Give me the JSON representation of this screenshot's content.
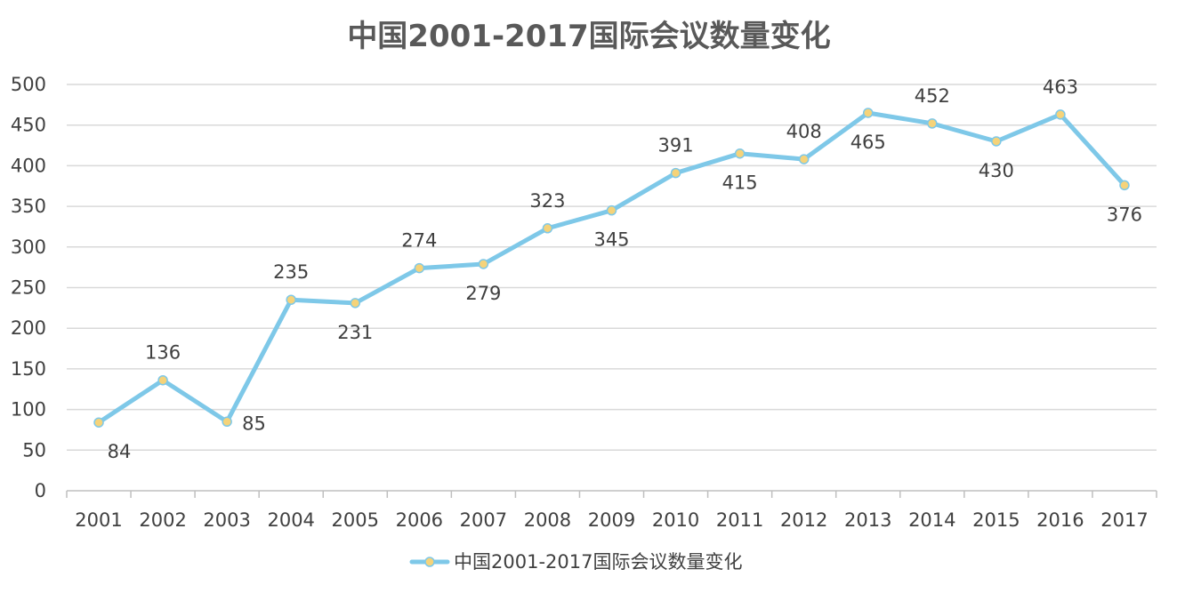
{
  "chart_data": {
    "type": "line",
    "title": "中国2001-2017国际会议数量变化",
    "xlabel": "",
    "ylabel": "",
    "categories": [
      "2001",
      "2002",
      "2003",
      "2004",
      "2005",
      "2006",
      "2007",
      "2008",
      "2009",
      "2010",
      "2011",
      "2012",
      "2013",
      "2014",
      "2015",
      "2016",
      "2017"
    ],
    "series": [
      {
        "name": "中国2001-2017国际会议数量变化",
        "values": [
          84,
          136,
          85,
          235,
          231,
          274,
          279,
          323,
          345,
          391,
          415,
          408,
          465,
          452,
          430,
          463,
          376
        ],
        "label_position": [
          "below",
          "above",
          "right",
          "above",
          "below",
          "above",
          "below",
          "above",
          "below",
          "above",
          "below",
          "above",
          "below",
          "above",
          "below",
          "above",
          "below"
        ]
      }
    ],
    "ylim": [
      0,
      500
    ],
    "yticks": [
      0,
      50,
      100,
      150,
      200,
      250,
      300,
      350,
      400,
      450,
      500
    ],
    "grid": true,
    "legend_position": "bottom",
    "colors": {
      "line": "#7EC8E8",
      "marker_fill": "#F5D37A",
      "marker_stroke": "#7EC8E8",
      "grid": "#D9D9D9",
      "axis": "#BFBFBF",
      "text": "#404040"
    }
  }
}
